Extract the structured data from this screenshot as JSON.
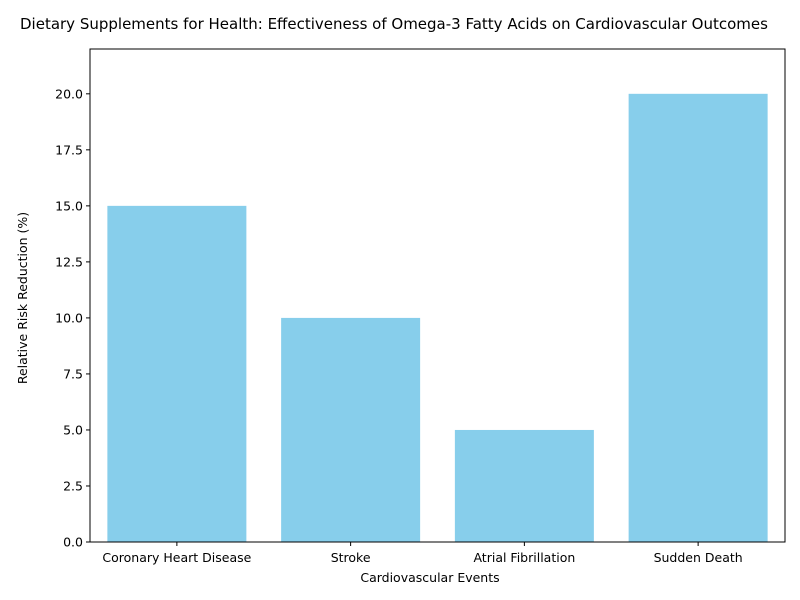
{
  "chart_data": {
    "type": "bar",
    "title": "Dietary Supplements for Health: Effectiveness of Omega-3 Fatty Acids on Cardiovascular Outcomes",
    "xlabel": "Cardiovascular Events",
    "ylabel": "Relative Risk Reduction (%)",
    "categories": [
      "Coronary Heart Disease",
      "Stroke",
      "Atrial Fibrillation",
      "Sudden Death"
    ],
    "values": [
      15,
      10,
      5,
      20
    ],
    "ylim": [
      0,
      22
    ],
    "yticks": [
      "0.0",
      "2.5",
      "5.0",
      "7.5",
      "10.0",
      "12.5",
      "15.0",
      "17.5",
      "20.0"
    ],
    "bar_color": "#87ceeb",
    "grid": false,
    "legend": "none"
  }
}
